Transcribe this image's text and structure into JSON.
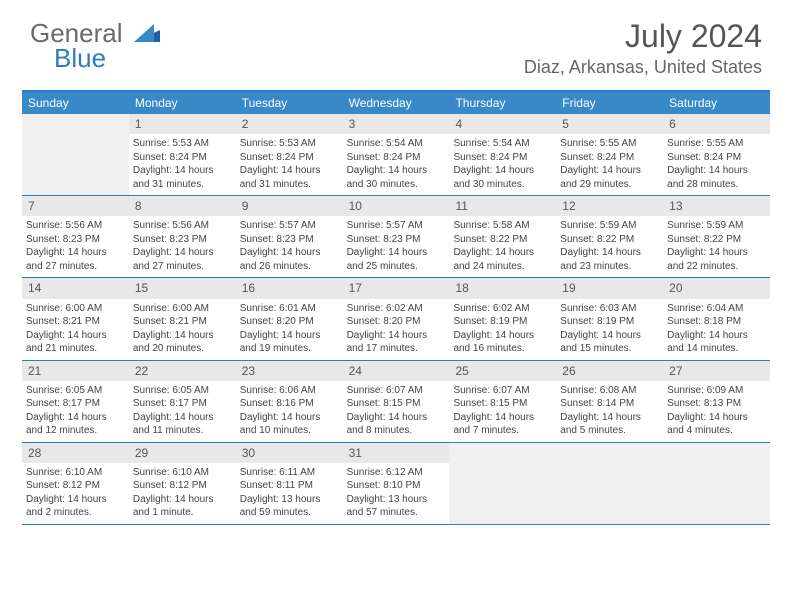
{
  "logo": {
    "text1": "General",
    "text2": "Blue"
  },
  "title": "July 2024",
  "location": "Diaz, Arkansas, United States",
  "dayNames": [
    "Sunday",
    "Monday",
    "Tuesday",
    "Wednesday",
    "Thursday",
    "Friday",
    "Saturday"
  ],
  "colors": {
    "header_bg": "#3889c7",
    "border": "#2b7cc0",
    "daynum_bg": "#e8e8e8",
    "text": "#444444",
    "title": "#555555"
  },
  "weeks": [
    [
      {
        "n": "",
        "empty": true
      },
      {
        "n": "1",
        "sr": "Sunrise: 5:53 AM",
        "ss": "Sunset: 8:24 PM",
        "dl": "Daylight: 14 hours and 31 minutes."
      },
      {
        "n": "2",
        "sr": "Sunrise: 5:53 AM",
        "ss": "Sunset: 8:24 PM",
        "dl": "Daylight: 14 hours and 31 minutes."
      },
      {
        "n": "3",
        "sr": "Sunrise: 5:54 AM",
        "ss": "Sunset: 8:24 PM",
        "dl": "Daylight: 14 hours and 30 minutes."
      },
      {
        "n": "4",
        "sr": "Sunrise: 5:54 AM",
        "ss": "Sunset: 8:24 PM",
        "dl": "Daylight: 14 hours and 30 minutes."
      },
      {
        "n": "5",
        "sr": "Sunrise: 5:55 AM",
        "ss": "Sunset: 8:24 PM",
        "dl": "Daylight: 14 hours and 29 minutes."
      },
      {
        "n": "6",
        "sr": "Sunrise: 5:55 AM",
        "ss": "Sunset: 8:24 PM",
        "dl": "Daylight: 14 hours and 28 minutes."
      }
    ],
    [
      {
        "n": "7",
        "sr": "Sunrise: 5:56 AM",
        "ss": "Sunset: 8:23 PM",
        "dl": "Daylight: 14 hours and 27 minutes."
      },
      {
        "n": "8",
        "sr": "Sunrise: 5:56 AM",
        "ss": "Sunset: 8:23 PM",
        "dl": "Daylight: 14 hours and 27 minutes."
      },
      {
        "n": "9",
        "sr": "Sunrise: 5:57 AM",
        "ss": "Sunset: 8:23 PM",
        "dl": "Daylight: 14 hours and 26 minutes."
      },
      {
        "n": "10",
        "sr": "Sunrise: 5:57 AM",
        "ss": "Sunset: 8:23 PM",
        "dl": "Daylight: 14 hours and 25 minutes."
      },
      {
        "n": "11",
        "sr": "Sunrise: 5:58 AM",
        "ss": "Sunset: 8:22 PM",
        "dl": "Daylight: 14 hours and 24 minutes."
      },
      {
        "n": "12",
        "sr": "Sunrise: 5:59 AM",
        "ss": "Sunset: 8:22 PM",
        "dl": "Daylight: 14 hours and 23 minutes."
      },
      {
        "n": "13",
        "sr": "Sunrise: 5:59 AM",
        "ss": "Sunset: 8:22 PM",
        "dl": "Daylight: 14 hours and 22 minutes."
      }
    ],
    [
      {
        "n": "14",
        "sr": "Sunrise: 6:00 AM",
        "ss": "Sunset: 8:21 PM",
        "dl": "Daylight: 14 hours and 21 minutes."
      },
      {
        "n": "15",
        "sr": "Sunrise: 6:00 AM",
        "ss": "Sunset: 8:21 PM",
        "dl": "Daylight: 14 hours and 20 minutes."
      },
      {
        "n": "16",
        "sr": "Sunrise: 6:01 AM",
        "ss": "Sunset: 8:20 PM",
        "dl": "Daylight: 14 hours and 19 minutes."
      },
      {
        "n": "17",
        "sr": "Sunrise: 6:02 AM",
        "ss": "Sunset: 8:20 PM",
        "dl": "Daylight: 14 hours and 17 minutes."
      },
      {
        "n": "18",
        "sr": "Sunrise: 6:02 AM",
        "ss": "Sunset: 8:19 PM",
        "dl": "Daylight: 14 hours and 16 minutes."
      },
      {
        "n": "19",
        "sr": "Sunrise: 6:03 AM",
        "ss": "Sunset: 8:19 PM",
        "dl": "Daylight: 14 hours and 15 minutes."
      },
      {
        "n": "20",
        "sr": "Sunrise: 6:04 AM",
        "ss": "Sunset: 8:18 PM",
        "dl": "Daylight: 14 hours and 14 minutes."
      }
    ],
    [
      {
        "n": "21",
        "sr": "Sunrise: 6:05 AM",
        "ss": "Sunset: 8:17 PM",
        "dl": "Daylight: 14 hours and 12 minutes."
      },
      {
        "n": "22",
        "sr": "Sunrise: 6:05 AM",
        "ss": "Sunset: 8:17 PM",
        "dl": "Daylight: 14 hours and 11 minutes."
      },
      {
        "n": "23",
        "sr": "Sunrise: 6:06 AM",
        "ss": "Sunset: 8:16 PM",
        "dl": "Daylight: 14 hours and 10 minutes."
      },
      {
        "n": "24",
        "sr": "Sunrise: 6:07 AM",
        "ss": "Sunset: 8:15 PM",
        "dl": "Daylight: 14 hours and 8 minutes."
      },
      {
        "n": "25",
        "sr": "Sunrise: 6:07 AM",
        "ss": "Sunset: 8:15 PM",
        "dl": "Daylight: 14 hours and 7 minutes."
      },
      {
        "n": "26",
        "sr": "Sunrise: 6:08 AM",
        "ss": "Sunset: 8:14 PM",
        "dl": "Daylight: 14 hours and 5 minutes."
      },
      {
        "n": "27",
        "sr": "Sunrise: 6:09 AM",
        "ss": "Sunset: 8:13 PM",
        "dl": "Daylight: 14 hours and 4 minutes."
      }
    ],
    [
      {
        "n": "28",
        "sr": "Sunrise: 6:10 AM",
        "ss": "Sunset: 8:12 PM",
        "dl": "Daylight: 14 hours and 2 minutes."
      },
      {
        "n": "29",
        "sr": "Sunrise: 6:10 AM",
        "ss": "Sunset: 8:12 PM",
        "dl": "Daylight: 14 hours and 1 minute."
      },
      {
        "n": "30",
        "sr": "Sunrise: 6:11 AM",
        "ss": "Sunset: 8:11 PM",
        "dl": "Daylight: 13 hours and 59 minutes."
      },
      {
        "n": "31",
        "sr": "Sunrise: 6:12 AM",
        "ss": "Sunset: 8:10 PM",
        "dl": "Daylight: 13 hours and 57 minutes."
      },
      {
        "n": "",
        "empty": true
      },
      {
        "n": "",
        "empty": true
      },
      {
        "n": "",
        "empty": true
      }
    ]
  ]
}
